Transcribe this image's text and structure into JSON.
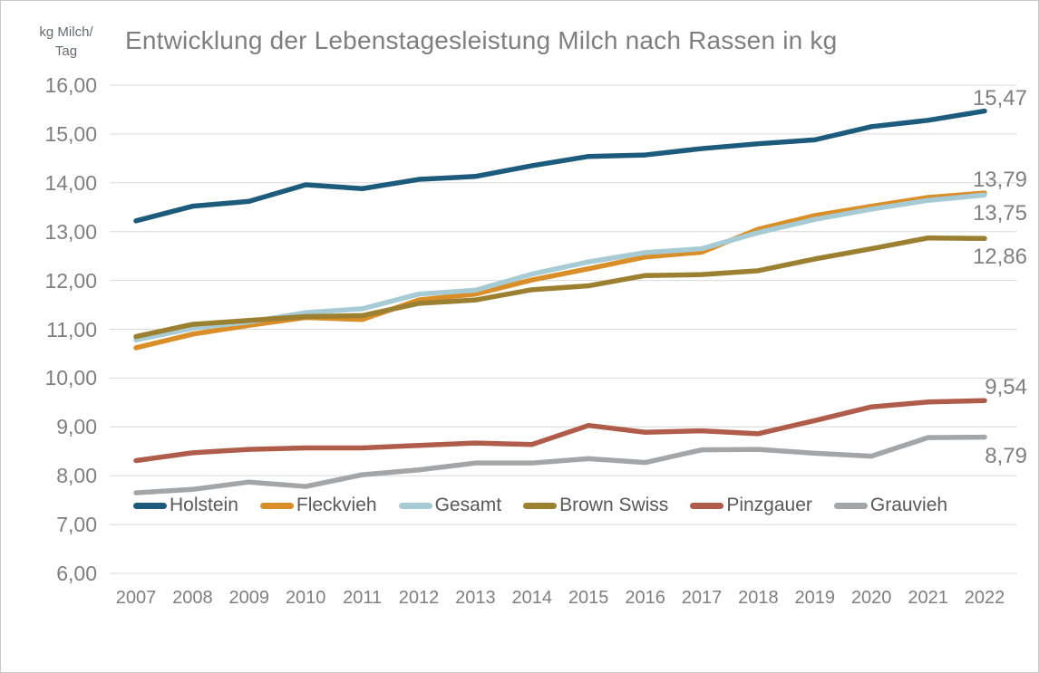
{
  "title": "Entwicklung der Lebenstagesleistung Milch nach Rassen in kg",
  "y_axis_unit": {
    "line1": "kg Milch/",
    "line2": "Tag"
  },
  "colors": {
    "grid": "#d9d9d9",
    "axis_text": "#7f7f7f",
    "title_text": "#7f7f7f",
    "legend_text": "#595959",
    "frame_border": "#c9c9c9",
    "background": "#ffffff"
  },
  "chart_data": {
    "type": "line",
    "title": "Entwicklung der Lebenstagesleistung Milch nach Rassen in kg",
    "ylabel": "kg Milch/Tag",
    "xlabel": "",
    "grid": true,
    "legend_position": "bottom-inside",
    "y_min": 6,
    "y_max": 16,
    "y_ticks": [
      "16,00",
      "15,00",
      "14,00",
      "13,00",
      "12,00",
      "11,00",
      "10,00",
      "9,00",
      "8,00",
      "7,00",
      "6,00"
    ],
    "x": [
      "2007",
      "2008",
      "2009",
      "2010",
      "2011",
      "2012",
      "2013",
      "2014",
      "2015",
      "2016",
      "2017",
      "2018",
      "2019",
      "2020",
      "2021",
      "2022"
    ],
    "series": [
      {
        "name": "Holstein",
        "color": "#1c5b7c",
        "end_label": "15,47",
        "label_side": "above",
        "values": [
          13.22,
          13.52,
          13.62,
          13.96,
          13.88,
          14.07,
          14.13,
          14.35,
          14.54,
          14.57,
          14.7,
          14.8,
          14.88,
          15.15,
          15.28,
          15.47
        ]
      },
      {
        "name": "Fleckvieh",
        "color": "#d98e28",
        "end_label": "13,79",
        "label_side": "above",
        "values": [
          10.62,
          10.9,
          11.08,
          11.24,
          11.2,
          11.6,
          11.72,
          12.01,
          12.24,
          12.48,
          12.58,
          13.05,
          13.33,
          13.52,
          13.7,
          13.79
        ]
      },
      {
        "name": "Gesamt",
        "color": "#a6cbd5",
        "end_label": "13,75",
        "label_side": "below",
        "values": [
          10.78,
          11.02,
          11.15,
          11.34,
          11.42,
          11.72,
          11.8,
          12.13,
          12.38,
          12.57,
          12.65,
          12.98,
          13.25,
          13.46,
          13.64,
          13.75
        ]
      },
      {
        "name": "Brown Swiss",
        "color": "#9a8030",
        "end_label": "12,86",
        "label_side": "below",
        "values": [
          10.85,
          11.1,
          11.18,
          11.26,
          11.28,
          11.53,
          11.6,
          11.81,
          11.89,
          12.1,
          12.12,
          12.2,
          12.44,
          12.65,
          12.87,
          12.86
        ]
      },
      {
        "name": "Pinzgauer",
        "color": "#af5c4b",
        "end_label": "9,54",
        "label_side": "above",
        "values": [
          8.31,
          8.47,
          8.54,
          8.57,
          8.57,
          8.62,
          8.67,
          8.64,
          9.03,
          8.89,
          8.92,
          8.86,
          9.13,
          9.41,
          9.51,
          9.54
        ]
      },
      {
        "name": "Grauvieh",
        "color": "#a2a6a9",
        "end_label": "8,79",
        "label_side": "below",
        "values": [
          7.65,
          7.72,
          7.87,
          7.78,
          8.02,
          8.12,
          8.26,
          8.26,
          8.35,
          8.27,
          8.53,
          8.54,
          8.46,
          8.4,
          8.78,
          8.79
        ]
      }
    ]
  }
}
